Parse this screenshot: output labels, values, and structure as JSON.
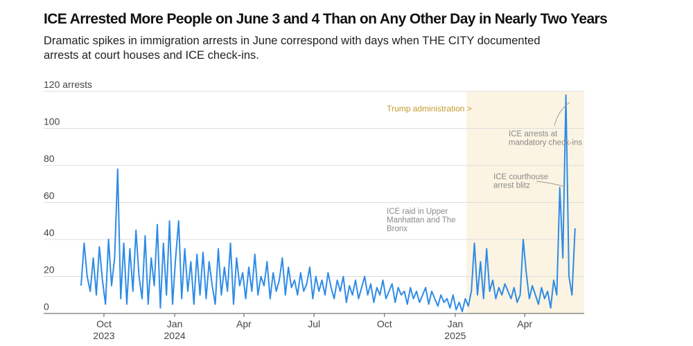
{
  "chart_data": {
    "type": "line",
    "title": "ICE Arrested More People on June 3 and 4 Than on Any Other Day in Nearly Two Years",
    "subtitle": [
      "Dramatic spikes in immigration arrests in June correspond with days when THE CITY documented",
      "arrests at court houses and ICE check-ins."
    ],
    "series": [
      {
        "name": "ICE arrests",
        "color": "#2e8be6",
        "values": [
          15,
          38,
          20,
          12,
          30,
          10,
          36,
          18,
          5,
          40,
          15,
          30,
          78,
          8,
          38,
          5,
          35,
          12,
          45,
          20,
          8,
          42,
          5,
          30,
          15,
          48,
          3,
          38,
          10,
          50,
          5,
          30,
          50,
          8,
          35,
          12,
          28,
          5,
          32,
          10,
          33,
          8,
          28,
          15,
          5,
          35,
          10,
          25,
          12,
          38,
          5,
          30,
          15,
          22,
          8,
          25,
          12,
          32,
          10,
          20,
          15,
          28,
          8,
          22,
          12,
          18,
          30,
          10,
          25,
          14,
          18,
          10,
          22,
          12,
          16,
          25,
          8,
          20,
          12,
          18,
          10,
          22,
          14,
          8,
          18,
          12,
          20,
          6,
          15,
          10,
          18,
          8,
          14,
          20,
          10,
          16,
          6,
          14,
          10,
          18,
          8,
          12,
          16,
          6,
          14,
          10,
          12,
          5,
          14,
          8,
          12,
          6,
          10,
          14,
          5,
          12,
          8,
          4,
          10,
          6,
          8,
          3,
          10,
          2,
          6,
          1,
          8,
          4,
          12,
          38,
          10,
          28,
          8,
          35,
          12,
          18,
          8,
          14,
          10,
          16,
          12,
          8,
          14,
          6,
          10,
          40,
          22,
          8,
          15,
          10,
          5,
          14,
          8,
          12,
          3,
          18,
          10,
          68,
          30,
          118,
          20,
          10,
          46
        ]
      }
    ],
    "xlim": [
      0,
      165
    ],
    "xticks": [
      {
        "value": 7.5,
        "label": "Oct"
      },
      {
        "value": 30.7,
        "label": "Jan"
      },
      {
        "value": 53.4,
        "label": "Apr"
      },
      {
        "value": 76.4,
        "label": "Jul"
      },
      {
        "value": 99.5,
        "label": "Oct"
      },
      {
        "value": 122.7,
        "label": "Jan"
      },
      {
        "value": 145.5,
        "label": "Apr"
      }
    ],
    "xtick_years": [
      {
        "value": 7.5,
        "label": "2023"
      },
      {
        "value": 30.7,
        "label": "2024"
      },
      {
        "value": 122.7,
        "label": "2025"
      }
    ],
    "ylim": [
      0,
      120
    ],
    "yticks": [
      0,
      20,
      40,
      60,
      80,
      100,
      {
        "value": 120,
        "label": "120 arrests"
      }
    ],
    "grid": true,
    "shade": {
      "from": 126.4,
      "to": 165,
      "label": "Trump administration >",
      "color": "#fbf4e2",
      "label_color": "#c49a2c"
    },
    "annotations": [
      {
        "lines": [
          "ICE raid in Upper",
          "Manhattan and The",
          "Bronx"
        ]
      },
      {
        "lines": [
          "ICE courthouse",
          "arrest blitz"
        ]
      },
      {
        "lines": [
          "ICE arrests at",
          "mandatory check-ins"
        ]
      }
    ]
  }
}
